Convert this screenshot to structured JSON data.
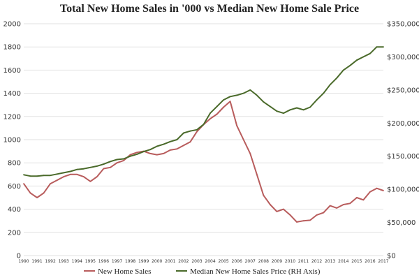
{
  "chart_data": {
    "type": "line",
    "title": "Total New Home Sales in '000 vs Median New Home Sale Price",
    "x_tick_labels": [
      "1990",
      "1991",
      "1992",
      "1993",
      "1994",
      "1995",
      "1996",
      "1997",
      "1998",
      "1999",
      "2000",
      "2001",
      "2002",
      "2003",
      "2004",
      "2005",
      "2006",
      "2007",
      "2008",
      "2009",
      "2010",
      "2011",
      "2012",
      "2013",
      "2014",
      "2015",
      "2016",
      "2017"
    ],
    "y_left": {
      "ticks": [
        "0",
        "200",
        "400",
        "600",
        "800",
        "1000",
        "1200",
        "1400",
        "1600",
        "1800",
        "2000"
      ],
      "range": [
        0,
        2000
      ]
    },
    "y_right": {
      "ticks": [
        "$0",
        "$50,000",
        "$100,000",
        "$150,000",
        "$200,000",
        "$250,000",
        "$300,000",
        "$350,000"
      ],
      "range": [
        0,
        350000
      ]
    },
    "grid": true,
    "legend_position": "bottom",
    "series": [
      {
        "name": "New Home Sales",
        "axis": "left",
        "color": "#b85c5c",
        "points": [
          [
            "1990",
            620
          ],
          [
            "1990.5",
            540
          ],
          [
            "1991",
            500
          ],
          [
            "1991.5",
            540
          ],
          [
            "1992",
            620
          ],
          [
            "1992.5",
            650
          ],
          [
            "1993",
            680
          ],
          [
            "1993.5",
            700
          ],
          [
            "1994",
            700
          ],
          [
            "1994.5",
            680
          ],
          [
            "1995",
            640
          ],
          [
            "1995.5",
            680
          ],
          [
            "1996",
            750
          ],
          [
            "1996.5",
            760
          ],
          [
            "1997",
            800
          ],
          [
            "1997.5",
            820
          ],
          [
            "1998",
            870
          ],
          [
            "1998.5",
            890
          ],
          [
            "1999",
            900
          ],
          [
            "1999.5",
            880
          ],
          [
            "2000",
            870
          ],
          [
            "2000.5",
            880
          ],
          [
            "2001",
            910
          ],
          [
            "2001.5",
            920
          ],
          [
            "2002",
            950
          ],
          [
            "2002.5",
            980
          ],
          [
            "2003",
            1070
          ],
          [
            "2003.5",
            1130
          ],
          [
            "2004",
            1180
          ],
          [
            "2004.5",
            1220
          ],
          [
            "2005",
            1280
          ],
          [
            "2005.5",
            1330
          ],
          [
            "2006",
            1120
          ],
          [
            "2006.5",
            1000
          ],
          [
            "2007",
            880
          ],
          [
            "2007.5",
            700
          ],
          [
            "2008",
            520
          ],
          [
            "2008.5",
            440
          ],
          [
            "2009",
            380
          ],
          [
            "2009.5",
            400
          ],
          [
            "2010",
            350
          ],
          [
            "2010.5",
            290
          ],
          [
            "2011",
            300
          ],
          [
            "2011.5",
            305
          ],
          [
            "2012",
            350
          ],
          [
            "2012.5",
            370
          ],
          [
            "2013",
            430
          ],
          [
            "2013.5",
            410
          ],
          [
            "2014",
            440
          ],
          [
            "2014.5",
            450
          ],
          [
            "2015",
            500
          ],
          [
            "2015.5",
            480
          ],
          [
            "2016",
            550
          ],
          [
            "2016.5",
            580
          ],
          [
            "2017",
            560
          ]
        ]
      },
      {
        "name": "Median New Home Sales Price (RH Axis)",
        "axis": "right",
        "color": "#4a6a2a",
        "points": [
          [
            "1990",
            122000
          ],
          [
            "1990.5",
            120000
          ],
          [
            "1991",
            120000
          ],
          [
            "1991.5",
            121000
          ],
          [
            "1992",
            121000
          ],
          [
            "1992.5",
            123000
          ],
          [
            "1993",
            125000
          ],
          [
            "1993.5",
            127000
          ],
          [
            "1994",
            130000
          ],
          [
            "1994.5",
            131000
          ],
          [
            "1995",
            133000
          ],
          [
            "1995.5",
            135000
          ],
          [
            "1996",
            138000
          ],
          [
            "1996.5",
            142000
          ],
          [
            "1997",
            145000
          ],
          [
            "1997.5",
            146000
          ],
          [
            "1998",
            150000
          ],
          [
            "1998.5",
            153000
          ],
          [
            "1999",
            157000
          ],
          [
            "1999.5",
            160000
          ],
          [
            "2000",
            165000
          ],
          [
            "2000.5",
            168000
          ],
          [
            "2001",
            172000
          ],
          [
            "2001.5",
            175000
          ],
          [
            "2002",
            185000
          ],
          [
            "2002.5",
            188000
          ],
          [
            "2003",
            190000
          ],
          [
            "2003.5",
            198000
          ],
          [
            "2004",
            215000
          ],
          [
            "2004.5",
            225000
          ],
          [
            "2005",
            235000
          ],
          [
            "2005.5",
            240000
          ],
          [
            "2006",
            242000
          ],
          [
            "2006.5",
            245000
          ],
          [
            "2007",
            250000
          ],
          [
            "2007.5",
            242000
          ],
          [
            "2008",
            232000
          ],
          [
            "2008.5",
            225000
          ],
          [
            "2009",
            218000
          ],
          [
            "2009.5",
            215000
          ],
          [
            "2010",
            220000
          ],
          [
            "2010.5",
            223000
          ],
          [
            "2011",
            220000
          ],
          [
            "2011.5",
            224000
          ],
          [
            "2012",
            235000
          ],
          [
            "2012.5",
            245000
          ],
          [
            "2013",
            258000
          ],
          [
            "2013.5",
            268000
          ],
          [
            "2014",
            280000
          ],
          [
            "2014.5",
            287000
          ],
          [
            "2015",
            295000
          ],
          [
            "2015.5",
            300000
          ],
          [
            "2016",
            305000
          ],
          [
            "2016.5",
            315000
          ],
          [
            "2017",
            315000
          ]
        ]
      }
    ]
  }
}
